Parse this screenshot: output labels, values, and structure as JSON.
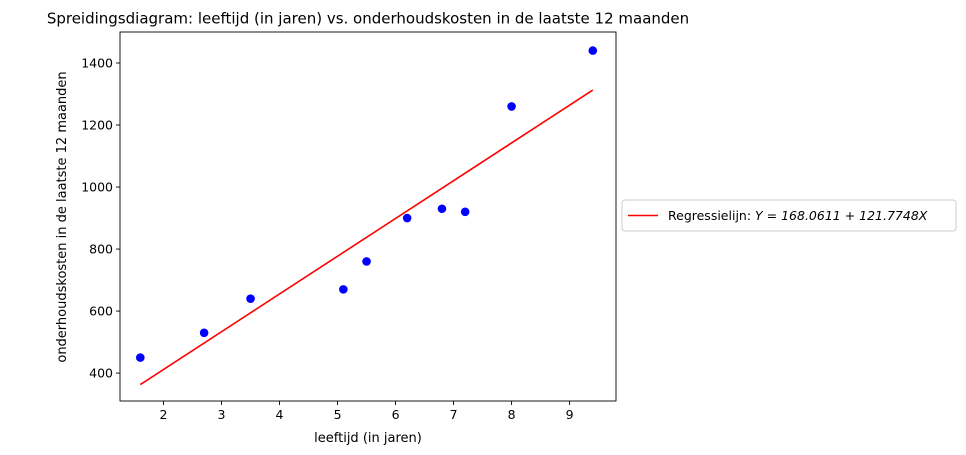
{
  "chart_data": {
    "type": "scatter",
    "title": "Spreidingsdiagram: leeftijd (in jaren) vs. onderhoudskosten in de laatste 12 maanden",
    "xlabel": "leeftijd (in jaren)",
    "ylabel": "onderhoudskosten in de laatste 12 maanden",
    "xlim": [
      1.25,
      9.8
    ],
    "ylim": [
      310,
      1500
    ],
    "xticks": [
      2,
      3,
      4,
      5,
      6,
      7,
      8,
      9
    ],
    "yticks": [
      400,
      600,
      800,
      1000,
      1200,
      1400
    ],
    "grid": false,
    "legend_position": "right-outside",
    "points": {
      "x": [
        1.6,
        2.7,
        3.5,
        5.1,
        5.5,
        6.2,
        6.8,
        7.2,
        8.0,
        9.4
      ],
      "y": [
        450,
        530,
        640,
        670,
        760,
        900,
        930,
        920,
        1260,
        1440
      ],
      "color": "#0000ff"
    },
    "regression_line": {
      "name": "Regressielijn: ",
      "equation": "Y = 168.0611 + 121.7748X",
      "intercept": 168.0611,
      "slope": 121.7748,
      "x_range": [
        1.6,
        9.4
      ],
      "color": "#ff0000"
    }
  }
}
